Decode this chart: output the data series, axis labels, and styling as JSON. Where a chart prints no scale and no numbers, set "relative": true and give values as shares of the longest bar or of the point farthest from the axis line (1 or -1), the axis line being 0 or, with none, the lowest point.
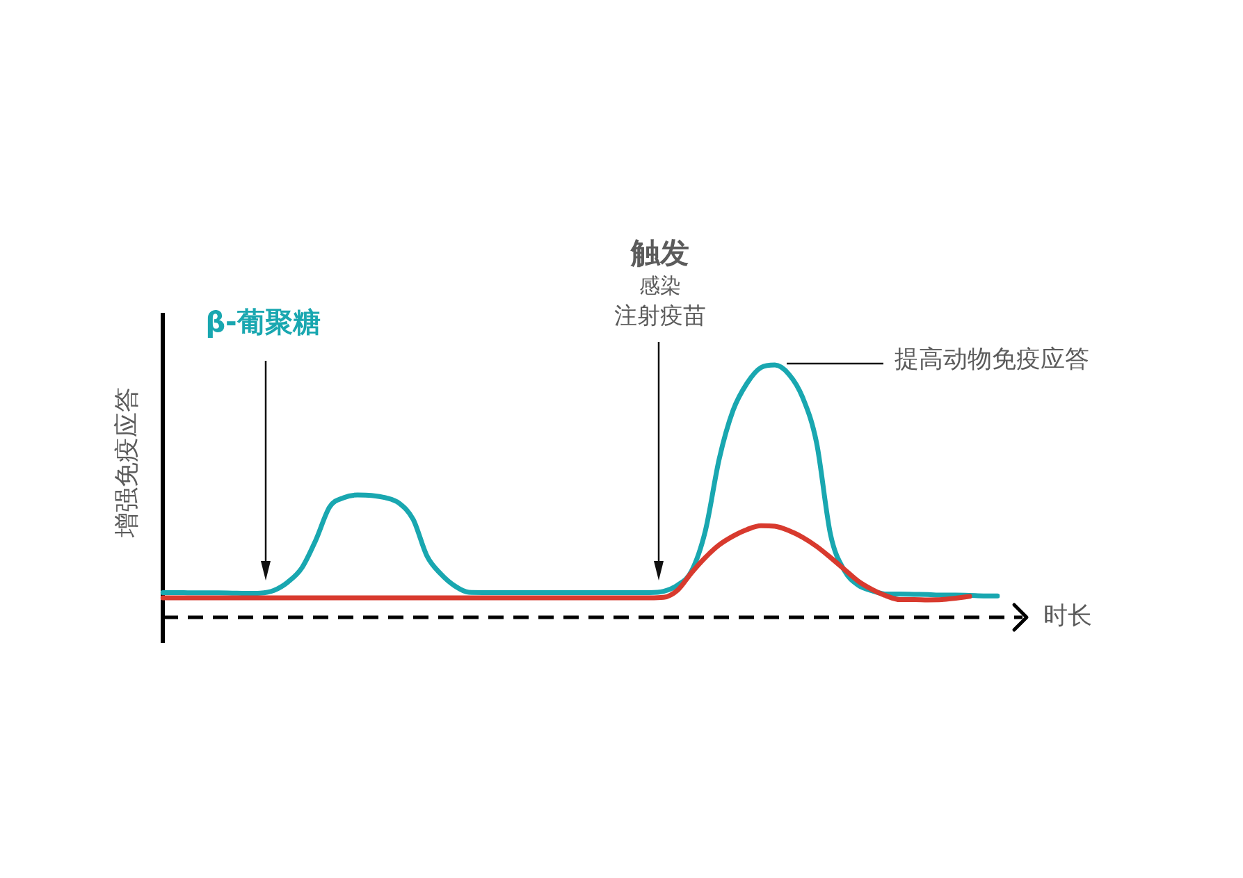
{
  "chart_data": {
    "type": "line",
    "relative": true,
    "xlabel": "时长",
    "ylabel": "增强免疫应答",
    "annotations": [
      "β-葡聚糖",
      "触发",
      "感染",
      "注射疫苗",
      "提高动物免疫应答"
    ],
    "categories": [
      null,
      null,
      null,
      null,
      null,
      null,
      null,
      null,
      null,
      null,
      null,
      null,
      null,
      null,
      null,
      null,
      null,
      null,
      null,
      null,
      null,
      null,
      null,
      null,
      null,
      null,
      null,
      null,
      null,
      null,
      null,
      null,
      null,
      null,
      null,
      null,
      null,
      null,
      null,
      null,
      null,
      null,
      null,
      null,
      null,
      null,
      null,
      null,
      null,
      null,
      null,
      null,
      null,
      null,
      null,
      null,
      null,
      null,
      null,
      null,
      null
    ],
    "series": [
      {
        "color": "#19a7b0",
        "values": [
          0.098,
          0.098,
          0.097,
          0.097,
          0.097,
          0.096,
          0.095,
          0.096,
          0.107,
          0.14,
          0.196,
          0.306,
          0.438,
          0.474,
          0.485,
          0.483,
          0.474,
          0.452,
          0.388,
          0.242,
          0.171,
          0.124,
          0.099,
          0.098,
          0.098,
          0.098,
          0.098,
          0.098,
          0.098,
          0.098,
          0.098,
          0.098,
          0.098,
          0.098,
          0.098,
          0.098,
          0.103,
          0.127,
          0.182,
          0.342,
          0.628,
          0.821,
          0.928,
          0.99,
          1,
          0.964,
          0.871,
          0.691,
          0.328,
          0.185,
          0.127,
          0.105,
          0.092,
          0.092,
          0.091,
          0.09,
          0.088,
          0.088,
          0.087,
          0.085,
          0.085
        ]
      },
      {
        "color": "#d83a2e",
        "values": [
          0.077,
          0.077,
          0.077,
          0.077,
          0.077,
          0.077,
          0.077,
          0.077,
          0.077,
          0.077,
          0.077,
          0.077,
          0.077,
          0.077,
          0.077,
          0.077,
          0.077,
          0.077,
          0.077,
          0.077,
          0.077,
          0.077,
          0.077,
          0.077,
          0.077,
          0.077,
          0.077,
          0.077,
          0.077,
          0.077,
          0.077,
          0.077,
          0.077,
          0.077,
          0.077,
          0.077,
          0.079,
          0.107,
          0.176,
          0.237,
          0.287,
          0.322,
          0.348,
          0.363,
          0.361,
          0.344,
          0.317,
          0.281,
          0.237,
          0.19,
          0.143,
          0.11,
          0.085,
          0.07,
          0.07,
          0.069,
          0.07,
          0.076,
          0.083,
          null,
          null
        ]
      }
    ],
    "grid": false,
    "legend": false,
    "tick_labels": false,
    "marker": "none"
  }
}
